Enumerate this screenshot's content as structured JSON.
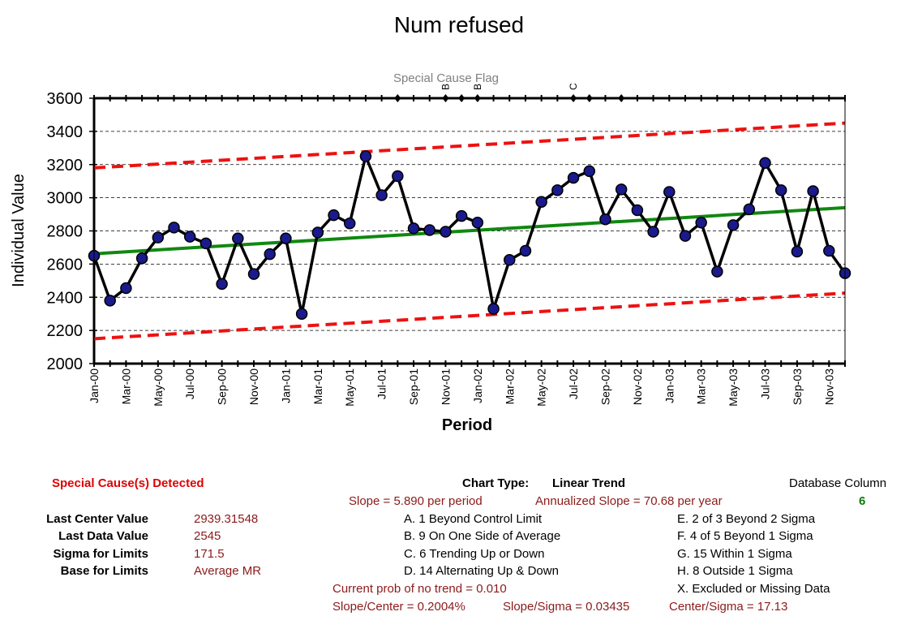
{
  "chart_data": {
    "type": "line",
    "title": "Num refused",
    "xlabel": "Period",
    "ylabel": "Individual Value",
    "ylim": [
      2000,
      3600
    ],
    "yticks": [
      2000,
      2200,
      2400,
      2600,
      2800,
      3000,
      3200,
      3400,
      3600
    ],
    "grid": "horizontal dashed",
    "x": [
      "Jan-00",
      "Feb-00",
      "Mar-00",
      "Apr-00",
      "May-00",
      "Jun-00",
      "Jul-00",
      "Aug-00",
      "Sep-00",
      "Oct-00",
      "Nov-00",
      "Dec-00",
      "Jan-01",
      "Feb-01",
      "Mar-01",
      "Apr-01",
      "May-01",
      "Jun-01",
      "Jul-01",
      "Aug-01",
      "Sep-01",
      "Oct-01",
      "Nov-01",
      "Dec-01",
      "Jan-02",
      "Feb-02",
      "Mar-02",
      "Apr-02",
      "May-02",
      "Jun-02",
      "Jul-02",
      "Aug-02",
      "Sep-02",
      "Oct-02",
      "Nov-02",
      "Dec-02",
      "Jan-03",
      "Feb-03",
      "Mar-03",
      "Apr-03",
      "May-03",
      "Jun-03",
      "Jul-03",
      "Aug-03",
      "Sep-03",
      "Oct-03",
      "Nov-03",
      "Dec-03"
    ],
    "x_tick_labels": [
      "Jan-00",
      "Mar-00",
      "May-00",
      "Jul-00",
      "Sep-00",
      "Nov-00",
      "Jan-01",
      "Mar-01",
      "May-01",
      "Jul-01",
      "Sep-01",
      "Nov-01",
      "Jan-02",
      "Mar-02",
      "May-02",
      "Jul-02",
      "Sep-02",
      "Nov-02",
      "Jan-03",
      "Mar-03",
      "May-03",
      "Jul-03",
      "Sep-03",
      "Nov-03"
    ],
    "series": [
      {
        "values": [
          2650,
          2380,
          2455,
          2635,
          2760,
          2820,
          2765,
          2725,
          2480,
          2755,
          2540,
          2660,
          2755,
          2300,
          2790,
          2895,
          2845,
          3250,
          3015,
          3130,
          2815,
          2805,
          2795,
          2890,
          2850,
          2330,
          2625,
          2680,
          2975,
          3045,
          3120,
          3160,
          2870,
          3050,
          2925,
          2795,
          3035,
          2770,
          2850,
          2555,
          2835,
          2930,
          3210,
          3045,
          2675,
          3040,
          2680,
          2545
        ],
        "color": "#000000"
      }
    ],
    "center_line": {
      "start": 2662,
      "end": 2940,
      "color": "#118811"
    },
    "upper_limit": {
      "start": 3180,
      "end": 3450,
      "color": "#ee1111"
    },
    "lower_limit": {
      "start": 2150,
      "end": 2425,
      "color": "#ee1111"
    },
    "special_cause_flag": {
      "label": "Special Cause Flag",
      "diamond_indices": [
        19,
        22,
        23,
        24,
        30,
        31,
        33
      ],
      "letters": [
        {
          "index": 22,
          "letter": "B"
        },
        {
          "index": 24,
          "letter": "B"
        },
        {
          "index": 30,
          "letter": "C"
        }
      ]
    }
  },
  "footer": {
    "special_cause": "Special Cause(s) Detected",
    "stats": [
      {
        "label": "Last Center Value",
        "value": "2939.31548"
      },
      {
        "label": "Last Data Value",
        "value": "2545"
      },
      {
        "label": "Sigma for Limits",
        "value": "171.5"
      },
      {
        "label": "Base for Limits",
        "value": "Average MR"
      }
    ],
    "chart_type_label": "Chart Type:",
    "chart_type_value": "Linear Trend",
    "slope": "Slope = 5.890 per period",
    "annualized": "Annualized Slope = 70.68 per year",
    "database_column_label": "Database Column",
    "database_column_value": "6",
    "rules_left": [
      "A.  1 Beyond Control Limit",
      "B.  9 On One Side of Average",
      "C.  6 Trending Up or Down",
      "D.  14 Alternating  Up & Down"
    ],
    "rules_right": [
      "E.  2 of 3 Beyond 2 Sigma",
      "F.  4 of 5 Beyond 1 Sigma",
      "G.  15 Within 1 Sigma",
      "H.  8 Outside 1 Sigma",
      "X.  Excluded or Missing Data"
    ],
    "prob": "Current prob of no trend = 0.010",
    "slope_center": "Slope/Center = 0.2004%",
    "slope_sigma": "Slope/Sigma = 0.03435",
    "center_sigma": "Center/Sigma = 17.13"
  }
}
